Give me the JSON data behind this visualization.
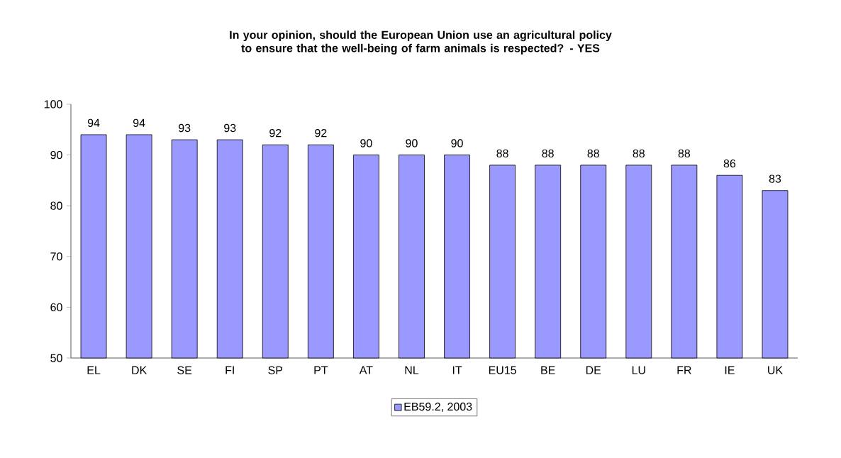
{
  "chart_data": {
    "type": "bar",
    "title": "In your opinion, should the European Union use an agricultural policy to ensure that the well-being of farm animals is respected? - YES",
    "categories": [
      "EL",
      "DK",
      "SE",
      "FI",
      "SP",
      "PT",
      "AT",
      "NL",
      "IT",
      "EU15",
      "BE",
      "DE",
      "LU",
      "FR",
      "IE",
      "UK"
    ],
    "series": [
      {
        "name": "EB59.2, 2003",
        "color": "#9999ff",
        "values": [
          94,
          94,
          93,
          93,
          92,
          92,
          90,
          90,
          90,
          88,
          88,
          88,
          88,
          88,
          86,
          83
        ]
      }
    ],
    "ylim": [
      50,
      100
    ],
    "yticks": [
      50,
      60,
      70,
      80,
      90,
      100
    ],
    "data_labels": true,
    "legend": "bottom",
    "grid": false
  }
}
